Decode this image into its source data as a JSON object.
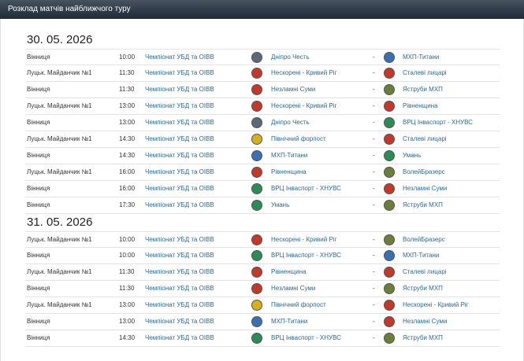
{
  "header": {
    "title": "Розклад матчів найближчого туру"
  },
  "days": [
    {
      "date": "30. 05. 2026",
      "matches": [
        {
          "venue": "Вінниця",
          "time": "10:00",
          "tournament": "Чемпіонат УБД та ОІВВ",
          "home": "Дніпро Честь",
          "separator": "-",
          "away": "МХП-Титани"
        },
        {
          "venue": "Луцьк. Майданчик №1",
          "time": "11:30",
          "tournament": "Чемпіонат УБД та ОІВВ",
          "home": "Нескорені - Кривий Ріг",
          "separator": "-",
          "away": "Сталеві лицарі"
        },
        {
          "venue": "Вінниця",
          "time": "11:30",
          "tournament": "Чемпіонат УБД та ОІВВ",
          "home": "Незламні Суми",
          "separator": "-",
          "away": "Яструби МХП"
        },
        {
          "venue": "Луцьк. Майданчик №1",
          "time": "13:00",
          "tournament": "Чемпіонат УБД та ОІВВ",
          "home": "Нескорені - Кривий Ріг",
          "separator": "-",
          "away": "Рівненщина"
        },
        {
          "venue": "Вінниця",
          "time": "13:00",
          "tournament": "Чемпіонат УБД та ОІВВ",
          "home": "Дніпро Честь",
          "separator": "-",
          "away": "ВРЦ Інваспорт - ХНУВС"
        },
        {
          "venue": "Луцьк. Майданчик №1",
          "time": "14:30",
          "tournament": "Чемпіонат УБД та ОІВВ",
          "home": "Північний форпост",
          "separator": "-",
          "away": "Сталеві лицарі"
        },
        {
          "venue": "Вінниця",
          "time": "14:30",
          "tournament": "Чемпіонат УБД та ОІВВ",
          "home": "МХП-Титани",
          "separator": "-",
          "away": "Умань"
        },
        {
          "venue": "Луцьк. Майданчик №1",
          "time": "16:00",
          "tournament": "Чемпіонат УБД та ОІВВ",
          "home": "Рівненщина",
          "separator": "-",
          "away": "ВолейБразерс"
        },
        {
          "venue": "Вінниця",
          "time": "16:00",
          "tournament": "Чемпіонат УБД та ОІВВ",
          "home": "ВРЦ Інваспорт - ХНУВС",
          "separator": "-",
          "away": "Незламні Суми"
        },
        {
          "venue": "Вінниця",
          "time": "17:30",
          "tournament": "Чемпіонат УБД та ОІВВ",
          "home": "Умань",
          "separator": "-",
          "away": "Яструби МХП"
        }
      ]
    },
    {
      "date": "31. 05. 2026",
      "matches": [
        {
          "venue": "Луцьк. Майданчик №1",
          "time": "10:00",
          "tournament": "Чемпіонат УБД та ОІВВ",
          "home": "Нескорені - Кривий Ріг",
          "separator": "-",
          "away": "ВолейБразерс"
        },
        {
          "venue": "Вінниця",
          "time": "10:00",
          "tournament": "Чемпіонат УБД та ОІВВ",
          "home": "ВРЦ Інваспорт - ХНУВС",
          "separator": "-",
          "away": "МХП-Титани"
        },
        {
          "venue": "Луцьк. Майданчик №1",
          "time": "11:30",
          "tournament": "Чемпіонат УБД та ОІВВ",
          "home": "Рівненщина",
          "separator": "-",
          "away": "Сталеві лицарі"
        },
        {
          "venue": "Вінниця",
          "time": "11:30",
          "tournament": "Чемпіонат УБД та ОІВВ",
          "home": "Незламні Суми",
          "separator": "-",
          "away": "Яструби МХП"
        },
        {
          "venue": "Луцьк. Майданчик №1",
          "time": "13:00",
          "tournament": "Чемпіонат УБД та ОІВВ",
          "home": "Північний форпост",
          "separator": "-",
          "away": "Нескорені - Кривий Ріг"
        },
        {
          "venue": "Вінниця",
          "time": "13:00",
          "tournament": "Чемпіонат УБД та ОІВВ",
          "home": "МХП-Титани",
          "separator": "-",
          "away": "Незламні Суми"
        },
        {
          "venue": "Вінниця",
          "time": "14:30",
          "tournament": "Чемпіонат УБД та ОІВВ",
          "home": "ВРЦ Інваспорт - ХНУВС",
          "separator": "-",
          "away": "Яструби МХП"
        }
      ]
    }
  ]
}
